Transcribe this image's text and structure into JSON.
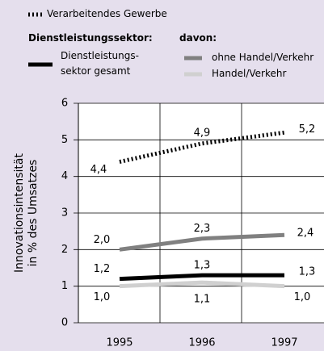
{
  "chart_data": {
    "type": "line",
    "y_label": "Innovationsintensität\nin % des Umsatzes",
    "legend_headings": [
      "Dienstleistungssektor:",
      "davon:"
    ],
    "categories": [
      "1995",
      "1996",
      "1997"
    ],
    "series": [
      {
        "name": "Verarbeitendes Gewerbe",
        "color": "#000000",
        "style": "dotted",
        "values": [
          4.4,
          4.9,
          5.2
        ],
        "value_labels": [
          "4,4",
          "4,9",
          "5,2"
        ]
      },
      {
        "name": "ohne Handel/Verkehr",
        "color": "#808080",
        "style": "solid",
        "values": [
          2.0,
          2.3,
          2.4
        ],
        "value_labels": [
          "2,0",
          "2,3",
          "2,4"
        ]
      },
      {
        "name": "Dienstleistungs-\nsektor gesamt",
        "color": "#000000",
        "style": "solid",
        "values": [
          1.2,
          1.3,
          1.3
        ],
        "value_labels": [
          "1,2",
          "1,3",
          "1,3"
        ]
      },
      {
        "name": "Handel/Verkehr",
        "color": "#d0d0d0",
        "style": "solid",
        "values": [
          1.0,
          1.1,
          1.0
        ],
        "value_labels": [
          "1,0",
          "1,1",
          "1,0"
        ]
      }
    ],
    "ylim": [
      0,
      6
    ],
    "yticks": [
      0,
      1,
      2,
      3,
      4,
      5,
      6
    ],
    "grid": true
  }
}
